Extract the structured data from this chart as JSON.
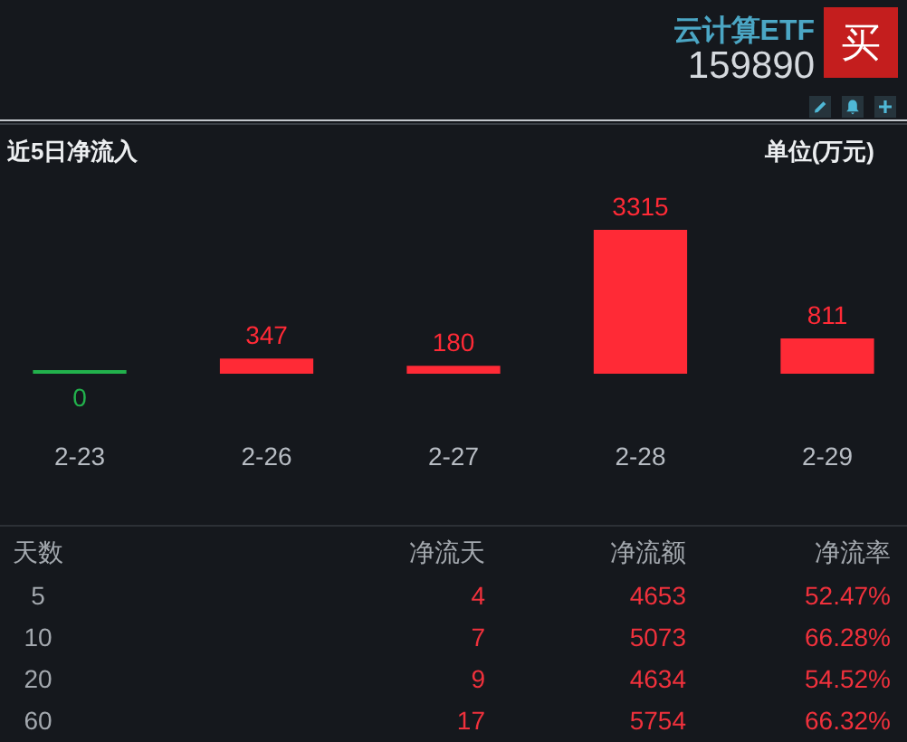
{
  "chart_data": [
    {
      "type": "bar",
      "title": "近5日净流入",
      "ylabel": "单位(万元)",
      "annotations": [
        "云计算ETF",
        "159890",
        "买"
      ],
      "categories": [
        "2-23",
        "2-26",
        "2-27",
        "2-28",
        "2-29"
      ],
      "values": [
        0,
        347,
        180,
        3315,
        811
      ],
      "colors": [
        "#22b14c",
        "#ff2a36",
        "#ff2a36",
        "#ff2a36",
        "#ff2a36"
      ],
      "data_labels": true,
      "tick_labels": "x"
    },
    {
      "type": "other",
      "annotations": [
        "天数",
        "净流天",
        "净流额",
        "净流率",
        "5",
        "4",
        "4653",
        "52.47%",
        "10",
        "7",
        "5073",
        "66.28%",
        "20",
        "9",
        "4634",
        "54.52%",
        "60",
        "17",
        "5754",
        "66.32%"
      ]
    }
  ]
}
